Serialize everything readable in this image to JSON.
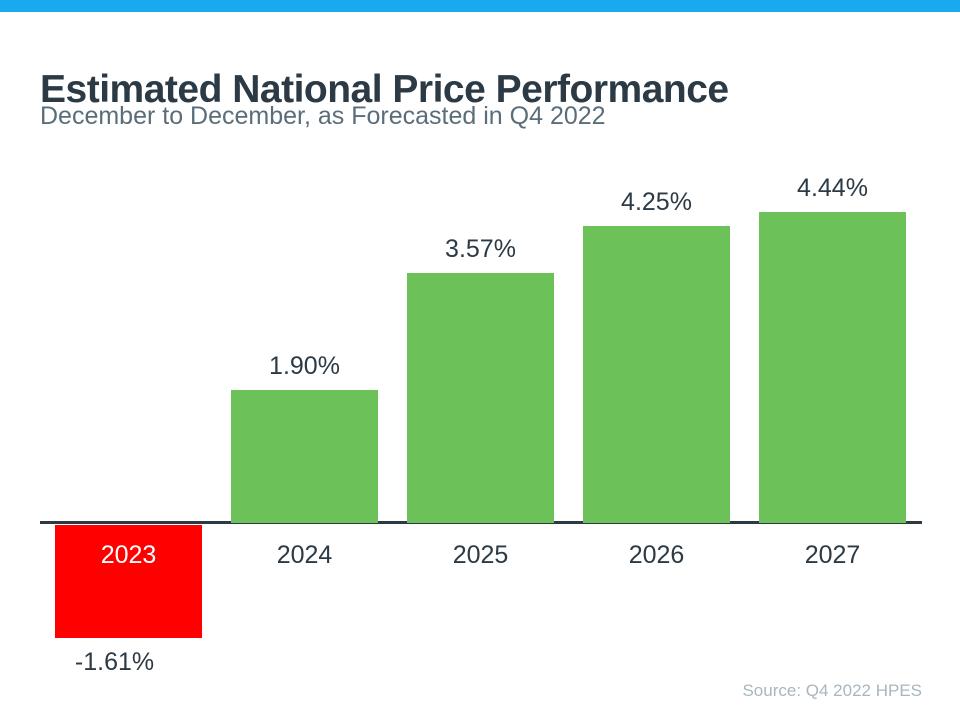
{
  "page": {
    "title": "Estimated National Price Performance",
    "subtitle": "December to December, as Forecasted in Q4 2022",
    "source": "Source: Q4 2022 HPES"
  },
  "colors": {
    "accent_bar": "#18AAEC",
    "positive_bar": "#6CC159",
    "negative_bar": "#FE0000",
    "title_text": "#2B3A45",
    "subtitle_text": "#5A6E79",
    "axis_line": "#2D3A44",
    "source_text": "#A9B6BE",
    "label_on_negative": "#FFFFFF"
  },
  "chart_data": {
    "type": "bar",
    "title": "Estimated National Price Performance",
    "subtitle": "December to December, as Forecasted in Q4 2022",
    "categories": [
      "2023",
      "2024",
      "2025",
      "2026",
      "2027"
    ],
    "values": [
      -1.61,
      1.9,
      3.57,
      4.25,
      4.44
    ],
    "labels": [
      "-1.61%",
      "1.90%",
      "3.57%",
      "4.25%",
      "4.44%"
    ],
    "bar_colors": [
      "#FE0000",
      "#6CC159",
      "#6CC159",
      "#6CC159",
      "#6CC159"
    ],
    "xlabel": "",
    "ylabel": "",
    "ylim": [
      -2,
      5
    ],
    "grid": false,
    "legend": false,
    "annotations": [
      "Source: Q4 2022 HPES"
    ]
  }
}
